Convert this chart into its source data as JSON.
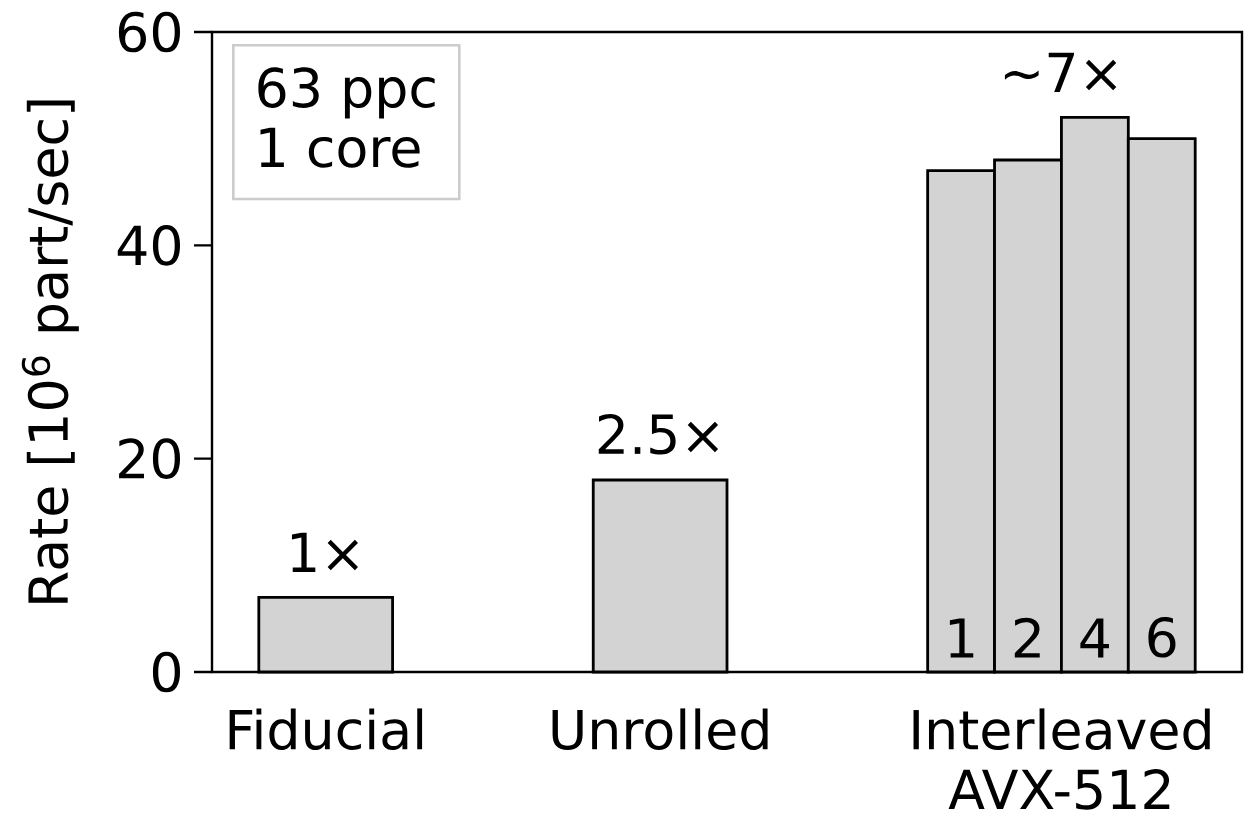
{
  "chart_data": {
    "type": "bar",
    "ylabel": "Rate [10$^{6}$ part/sec]",
    "categories": [
      "Fiducial",
      "Unrolled",
      "Interleaved AVX-512"
    ],
    "series": [
      {
        "color": "#d3d3d3",
        "values": [
          7,
          18,
          null
        ]
      },
      {
        "name": "1",
        "color": "#d3d3d3",
        "values": [
          null,
          null,
          47
        ]
      },
      {
        "name": "2",
        "color": "#d3d3d3",
        "values": [
          null,
          null,
          48
        ]
      },
      {
        "name": "4",
        "color": "#d3d3d3",
        "values": [
          null,
          null,
          52
        ]
      },
      {
        "name": "6",
        "color": "#d3d3d3",
        "values": [
          null,
          null,
          50
        ]
      }
    ],
    "ylim": [
      0,
      60
    ],
    "yticks": [
      0,
      20,
      40,
      60
    ],
    "annotations": [
      "63 ppc",
      "1 core",
      {
        "text": "1×",
        "x": "Fiducial",
        "y": 7
      },
      {
        "text": "2.5×",
        "x": "Unrolled",
        "y": 18
      },
      "∼7×"
    ]
  }
}
